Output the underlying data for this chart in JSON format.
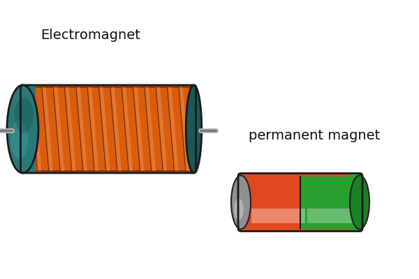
{
  "electromagnet_label": "Electromagnet",
  "permanent_label": "permanent magnet",
  "bg_color": "#ffffff",
  "coil_base": "#b84a00",
  "coil_mid": "#e06010",
  "coil_light": "#f09050",
  "coil_dark": "#7a3000",
  "coil_shadow": "#5a2000",
  "core_color": "#2a7878",
  "core_highlight": "#3a9898",
  "core_dark": "#1a5858",
  "pm_red": "#e04820",
  "pm_red_hi": "#ff8060",
  "pm_green": "#28a030",
  "pm_green_hi": "#50d060",
  "pm_gray": "#909090",
  "pm_gray_hi": "#c0c0c0",
  "pm_gray_dk": "#606060",
  "label_fontsize": 14,
  "label_color": "#111111",
  "wire_color": "#dddddd",
  "wire_dark": "#888888"
}
